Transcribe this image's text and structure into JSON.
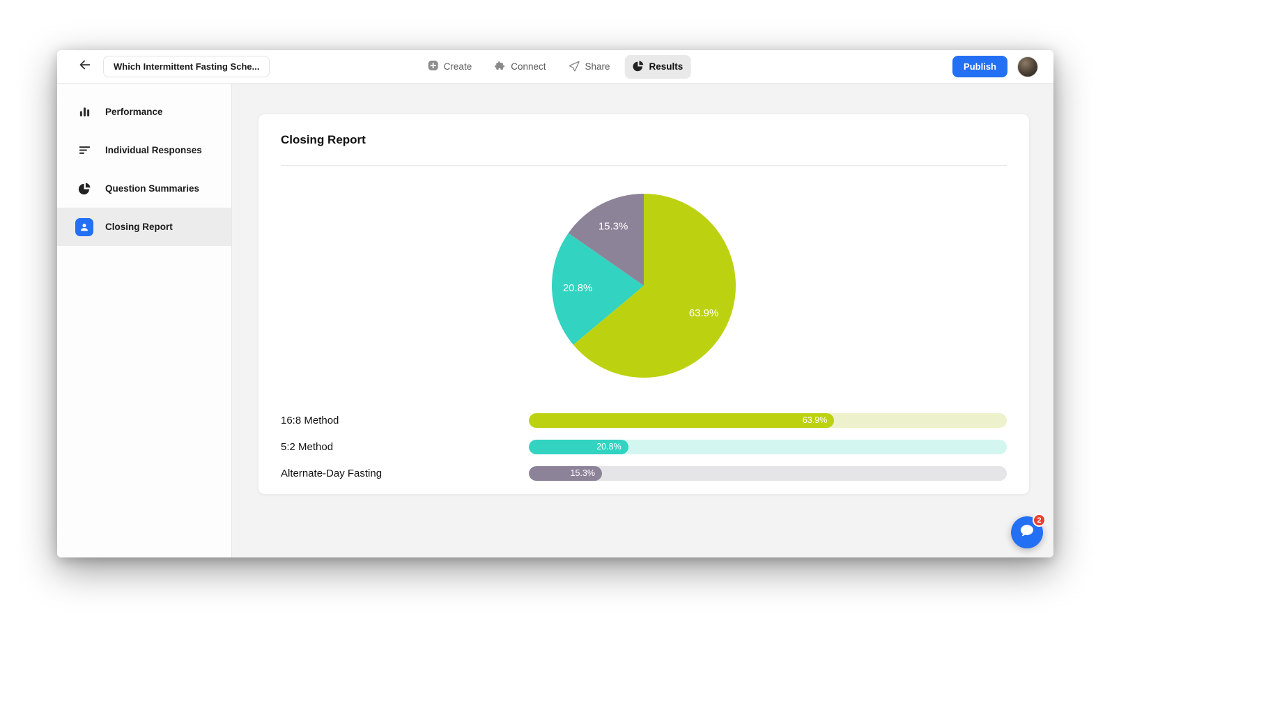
{
  "topbar": {
    "survey_title": "Which Intermittent Fasting Sche...",
    "nav": [
      {
        "label": "Create",
        "icon": "plus-square-icon"
      },
      {
        "label": "Connect",
        "icon": "puzzle-icon"
      },
      {
        "label": "Share",
        "icon": "paper-plane-icon"
      },
      {
        "label": "Results",
        "icon": "pie-icon",
        "active": true
      }
    ],
    "publish_label": "Publish"
  },
  "sidebar": {
    "items": [
      {
        "label": "Performance",
        "icon": "bar-chart-icon"
      },
      {
        "label": "Individual Responses",
        "icon": "list-lines-icon"
      },
      {
        "label": "Question Summaries",
        "icon": "pie-icon"
      },
      {
        "label": "Closing Report",
        "icon": "person-icon",
        "active": true
      }
    ]
  },
  "card": {
    "title": "Closing Report"
  },
  "chart_data": {
    "type": "pie",
    "title": "Closing Report",
    "categories": [
      "16:8 Method",
      "5:2 Method",
      "Alternate-Day Fasting"
    ],
    "values": [
      63.9,
      20.8,
      15.3
    ],
    "value_labels": [
      "63.9%",
      "20.8%",
      "15.3%"
    ],
    "colors": [
      "#bcd211",
      "#32d3c1",
      "#8d8399"
    ],
    "track_colors": [
      "#eef2cc",
      "#d4f6f1",
      "#e5e4e6"
    ],
    "legend_position": "bottom-list",
    "label_radius_ratio": 0.72
  },
  "chat": {
    "badge_count": "2"
  },
  "colors": {
    "accent_blue": "#2470f4",
    "badge_red": "#ee3b30",
    "active_pill_gray": "#e9e9e9"
  }
}
